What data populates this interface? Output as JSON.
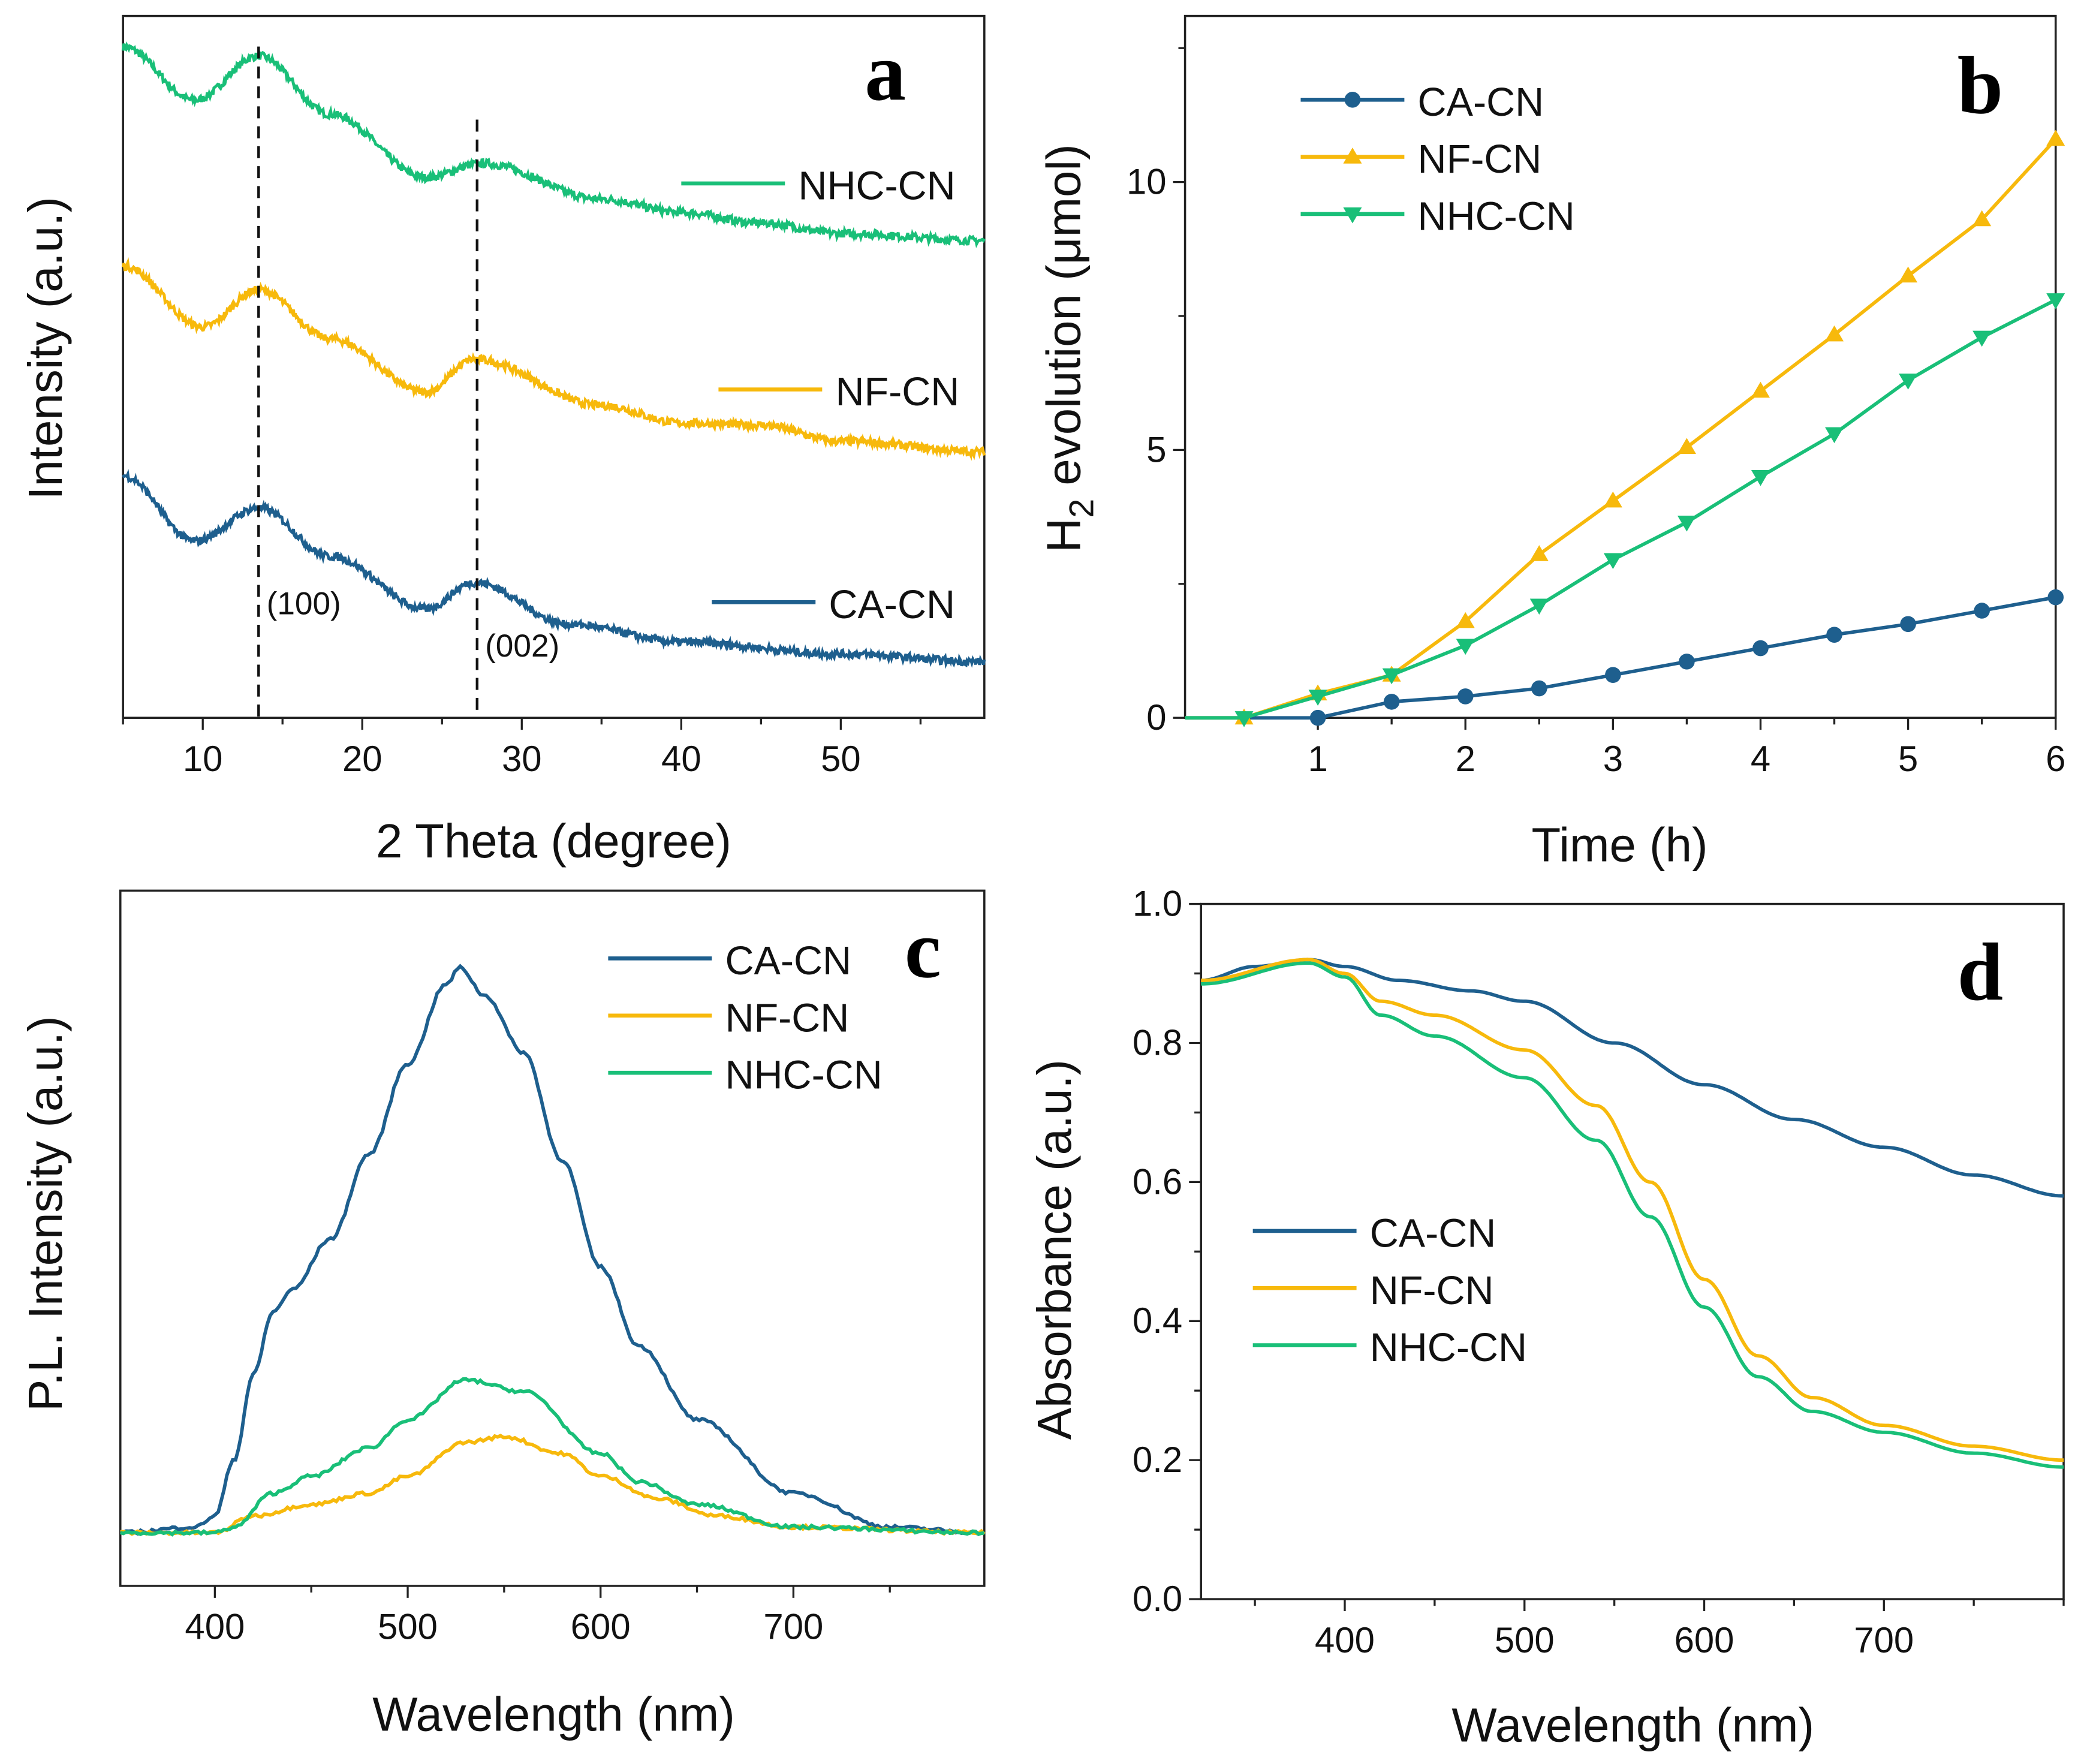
{
  "colors": {
    "CA-CN": "#1e5f8e",
    "NF-CN": "#f7b90c",
    "NHC-CN": "#19bf78"
  },
  "chart_data": [
    {
      "panel": "a",
      "type": "line",
      "xlabel": "2 Theta (degree)",
      "ylabel": "Intensity (a.u.)",
      "xlim": [
        5,
        59
      ],
      "ylim": [
        0,
        100
      ],
      "xticks": [
        10,
        20,
        30,
        40,
        50
      ],
      "yticks": [],
      "annotations": [
        {
          "text": "(100)",
          "x": 13.5
        },
        {
          "text": "(002)",
          "x": 27.2
        }
      ],
      "legend": "inline-right",
      "series": [
        {
          "name": "NHC-CN",
          "x": [
            5,
            9.5,
            13.5,
            18,
            24,
            27.5,
            35,
            40,
            45,
            50,
            59
          ],
          "y": [
            95.6,
            88,
            94.3,
            86,
            77,
            79,
            73.9,
            72,
            70.5,
            69,
            68
          ]
        },
        {
          "name": "NF-CN",
          "x": [
            5,
            10,
            13.5,
            18,
            24,
            27,
            35,
            40,
            45,
            50,
            59
          ],
          "y": [
            64.4,
            55.7,
            61,
            54,
            46.4,
            51.1,
            44.5,
            42,
            41.7,
            39.4,
            37.9
          ]
        },
        {
          "name": "CA-CN",
          "x": [
            5,
            9.5,
            13.5,
            18,
            24,
            27,
            33,
            40,
            50,
            59
          ],
          "y": [
            34.5,
            25.2,
            29.9,
            23,
            15.5,
            19.3,
            13.3,
            10.8,
            9.1,
            8
          ]
        }
      ]
    },
    {
      "panel": "b",
      "type": "line",
      "xlabel": "Time (h)",
      "ylabel_main": "H",
      "ylabel_sub": "2",
      "ylabel_rest": " evolution (μmol)",
      "xlim": [
        0.1,
        6
      ],
      "ylim": [
        0,
        13.1
      ],
      "xticks": [
        1,
        2,
        3,
        4,
        5,
        6
      ],
      "yticks": [
        0,
        5,
        10
      ],
      "legend": "top-left",
      "series": [
        {
          "name": "CA-CN",
          "marker": "circle",
          "x": [
            1,
            1.5,
            2,
            2.5,
            3,
            3.5,
            4,
            4.5,
            5,
            5.5,
            6
          ],
          "y": [
            0,
            0.3,
            0.4,
            0.55,
            0.8,
            1.05,
            1.3,
            1.55,
            1.75,
            2.0,
            2.25
          ]
        },
        {
          "name": "NF-CN",
          "marker": "triangle-up",
          "x": [
            0.5,
            1,
            1.5,
            2,
            2.5,
            3,
            3.5,
            4,
            4.5,
            5,
            5.5,
            6
          ],
          "y": [
            0,
            0.45,
            0.8,
            1.8,
            3.05,
            4.05,
            5.05,
            6.1,
            7.15,
            8.25,
            9.3,
            10.8
          ]
        },
        {
          "name": "NHC-CN",
          "marker": "triangle-down",
          "x": [
            0.5,
            1,
            1.5,
            2,
            2.5,
            3,
            3.5,
            4,
            4.5,
            5,
            5.5,
            6
          ],
          "y": [
            0,
            0.4,
            0.8,
            1.35,
            2.1,
            2.95,
            3.65,
            4.5,
            5.3,
            6.3,
            7.1,
            7.8
          ]
        }
      ]
    },
    {
      "panel": "c",
      "type": "line",
      "xlabel": "Wavelength (nm)",
      "ylabel": "P.L. Intensity (a.u.)",
      "xlim": [
        351,
        799
      ],
      "ylim": [
        -0.094,
        1.136
      ],
      "xticks": [
        400,
        500,
        600,
        700
      ],
      "yticks": [],
      "legend": "top-right",
      "series": [
        {
          "name": "CA-CN",
          "x": [
            351,
            390,
            400,
            410,
            420,
            430,
            440,
            460,
            480,
            500,
            520,
            527,
            540,
            560,
            580,
            600,
            620,
            650,
            700,
            750,
            799
          ],
          "y": [
            0,
            0.01,
            0.03,
            0.13,
            0.28,
            0.39,
            0.43,
            0.52,
            0.67,
            0.83,
            0.97,
            1.0,
            0.95,
            0.85,
            0.66,
            0.47,
            0.33,
            0.2,
            0.07,
            0.01,
            0
          ]
        },
        {
          "name": "NF-CN",
          "x": [
            351,
            400,
            420,
            450,
            480,
            500,
            530,
            550,
            580,
            600,
            630,
            660,
            700,
            799
          ],
          "y": [
            0,
            0,
            0.03,
            0.05,
            0.07,
            0.1,
            0.16,
            0.17,
            0.14,
            0.1,
            0.06,
            0.03,
            0.01,
            0
          ]
        },
        {
          "name": "NHC-CN",
          "x": [
            351,
            400,
            410,
            430,
            450,
            480,
            500,
            530,
            560,
            600,
            620,
            650,
            700,
            799
          ],
          "y": [
            0,
            0,
            0.01,
            0.07,
            0.1,
            0.15,
            0.2,
            0.27,
            0.25,
            0.14,
            0.09,
            0.05,
            0.01,
            0
          ]
        }
      ]
    },
    {
      "panel": "d",
      "type": "line",
      "xlabel": "Wavelength (nm)",
      "ylabel": "Absorbance (a.u.)",
      "xlim": [
        320,
        800
      ],
      "ylim": [
        0,
        1.0
      ],
      "xticks": [
        400,
        500,
        600,
        700
      ],
      "yticks": [
        0.0,
        0.2,
        0.4,
        0.6,
        0.8,
        1.0
      ],
      "legend": "middle-left",
      "series": [
        {
          "name": "CA-CN",
          "x": [
            320,
            350,
            380,
            400,
            430,
            470,
            500,
            550,
            600,
            650,
            700,
            750,
            800
          ],
          "y": [
            0.89,
            0.91,
            0.92,
            0.91,
            0.89,
            0.875,
            0.86,
            0.8,
            0.74,
            0.69,
            0.65,
            0.61,
            0.58
          ]
        },
        {
          "name": "NF-CN",
          "x": [
            320,
            380,
            400,
            420,
            450,
            500,
            540,
            570,
            600,
            630,
            660,
            700,
            750,
            800
          ],
          "y": [
            0.89,
            0.92,
            0.9,
            0.86,
            0.84,
            0.79,
            0.71,
            0.6,
            0.46,
            0.35,
            0.29,
            0.25,
            0.22,
            0.2
          ]
        },
        {
          "name": "NHC-CN",
          "x": [
            320,
            380,
            400,
            420,
            450,
            500,
            540,
            570,
            600,
            630,
            660,
            700,
            750,
            800
          ],
          "y": [
            0.885,
            0.915,
            0.895,
            0.84,
            0.81,
            0.75,
            0.66,
            0.55,
            0.42,
            0.32,
            0.27,
            0.24,
            0.21,
            0.19
          ]
        }
      ]
    }
  ]
}
